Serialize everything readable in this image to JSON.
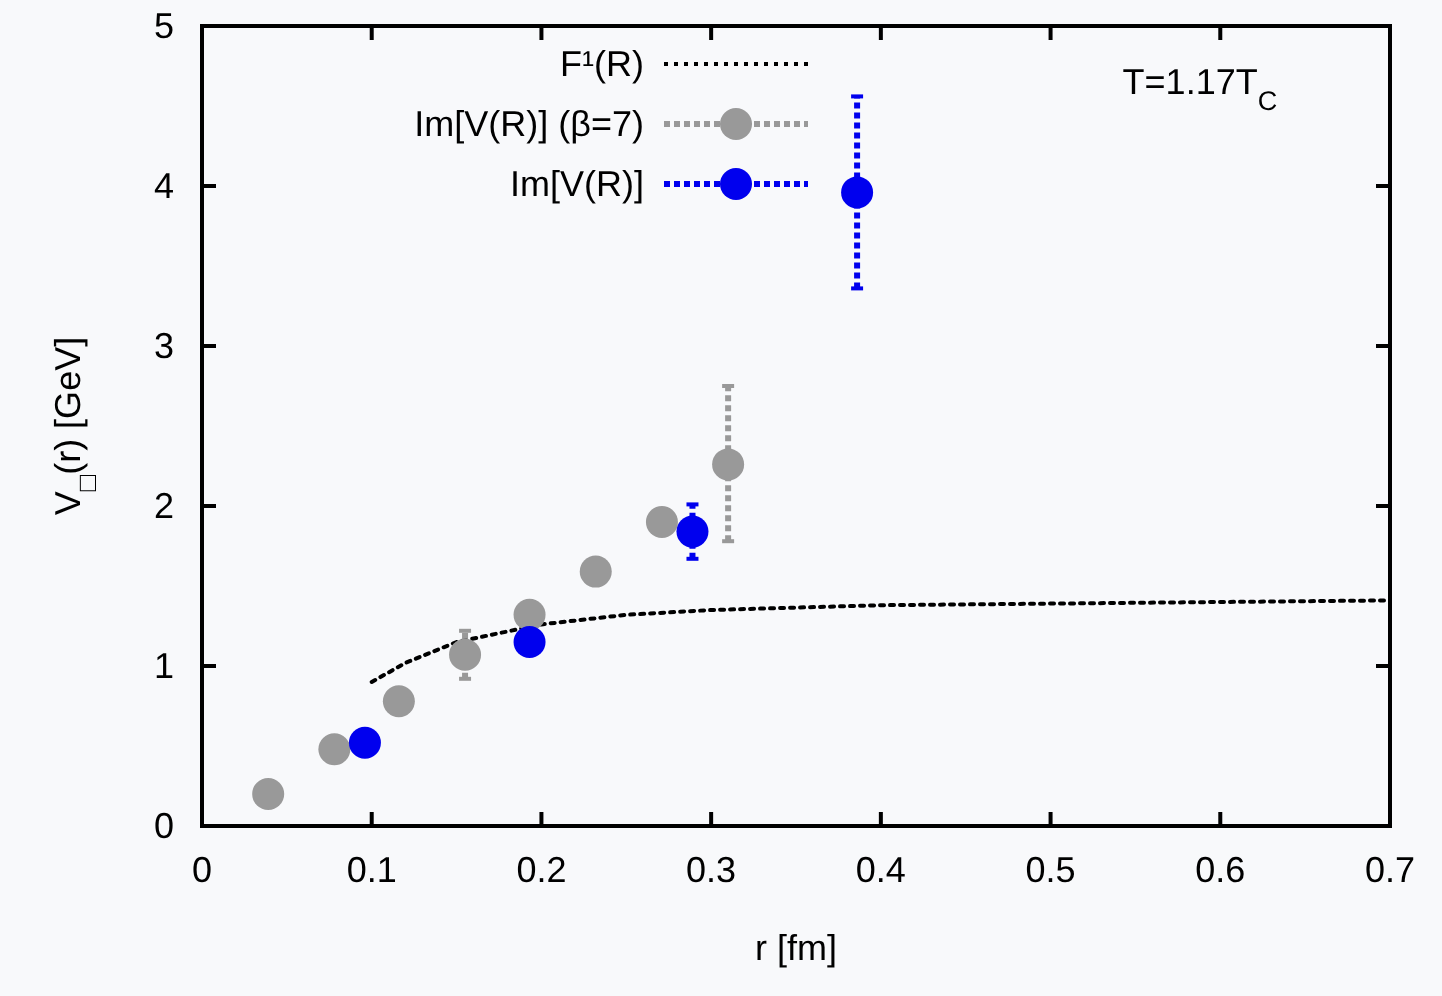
{
  "chart_data": {
    "type": "scatter",
    "xlabel": "r [fm]",
    "ylabel": "V$_{□}$(r) [GeV]",
    "xlim": [
      0,
      0.7
    ],
    "ylim": [
      0,
      5
    ],
    "xticks": [
      0,
      0.1,
      0.2,
      0.3,
      0.4,
      0.5,
      0.6,
      0.7
    ],
    "yticks": [
      0,
      1,
      2,
      3,
      4,
      5
    ],
    "legend": "top",
    "grid": false,
    "marker": "circle",
    "annotations": [
      "T=1.17T$_{C}$"
    ],
    "series": [
      {
        "name": "F¹(R)",
        "type": "line",
        "marker": "none",
        "line_style": "dotted",
        "color": "#000000",
        "x": [
          0.1,
          0.12,
          0.15,
          0.2,
          0.25,
          0.3,
          0.4,
          0.5,
          0.6,
          0.7
        ],
        "values": [
          0.9,
          1.02,
          1.15,
          1.26,
          1.32,
          1.35,
          1.38,
          1.39,
          1.4,
          1.41
        ]
      },
      {
        "name": "Im[V(R)] (β=7)",
        "color": "#999999",
        "x": [
          0.039,
          0.078,
          0.116,
          0.155,
          0.193,
          0.232,
          0.271,
          0.31
        ],
        "values": [
          0.2,
          0.48,
          0.78,
          1.07,
          1.32,
          1.59,
          1.9,
          2.26
        ],
        "errors": [
          null,
          null,
          null,
          0.15,
          null,
          null,
          null,
          [
            1.78,
            2.75
          ]
        ]
      },
      {
        "name": "Im[V(R)]",
        "color": "#0000ee",
        "x": [
          0.096,
          0.193,
          0.289,
          0.386
        ],
        "values": [
          0.52,
          1.15,
          1.84,
          3.96
        ],
        "errors": [
          null,
          null,
          0.17,
          0.6
        ]
      }
    ]
  }
}
